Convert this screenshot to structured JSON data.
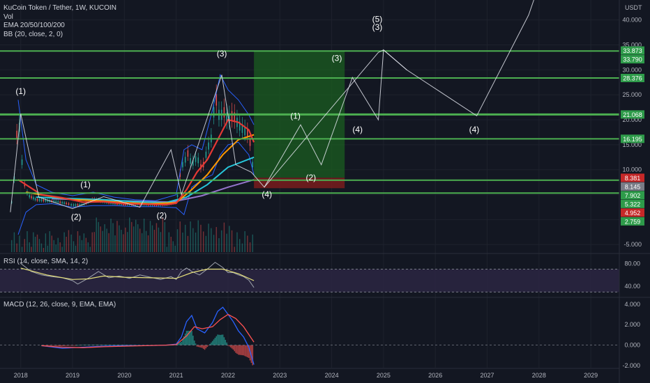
{
  "legend": {
    "symbol": "KuCoin Token / Tether, 1W, KUCOIN",
    "vol": "Vol",
    "ema": "EMA 20/50/100/200",
    "bb": "BB (20, close, 2, 0)"
  },
  "rsi_label": "RSI (14, close, SMA, 14, 2)",
  "macd_label": "MACD (12, 26, close, 9, EMA, EMA)",
  "colors": {
    "background": "#131722",
    "grid": "#1e222d",
    "level_line": "#4caf50",
    "price_badge_green": "#2e9b4a",
    "price_badge_red": "#c62828",
    "price_badge_gray": "#787b86",
    "candle_up": "#26a69a",
    "candle_down": "#ef5350",
    "ema20": "#e53935",
    "ema50": "#ff9800",
    "ema100": "#26c6da",
    "ema200": "#9575cd",
    "bb": "#2962ff",
    "projection": "#e0e3eb",
    "long_zone": "#1b5e20",
    "stop_zone": "#7f1d1d",
    "rsi_band": "#2a2540",
    "rsi_line": "#e6e07a",
    "macd_line": "#2962ff",
    "signal_line": "#ff5252"
  },
  "chart_data": [
    {
      "type": "line",
      "pane": "price",
      "y_axis_unit": "USDT",
      "y_ticks": [
        -5,
        0,
        5,
        10,
        15,
        20,
        25,
        30,
        35,
        40
      ],
      "ylim": [
        -6.5,
        44
      ],
      "x_ticks": [
        "2018",
        "2019",
        "2020",
        "2021",
        "2022",
        "2023",
        "2024",
        "2025",
        "2026",
        "2027",
        "2028",
        "2029"
      ],
      "xlim": [
        2017.6,
        2029.55
      ],
      "horizontal_levels": [
        33.79,
        28.376,
        21.068,
        16.195,
        7.902,
        5.322
      ],
      "price_badges": [
        {
          "value": "33.873",
          "kind": "green"
        },
        {
          "value": "33.790",
          "kind": "green"
        },
        {
          "value": "28.376",
          "kind": "green"
        },
        {
          "value": "21.068",
          "kind": "green"
        },
        {
          "value": "16.195",
          "kind": "green"
        },
        {
          "value": "8.381",
          "kind": "red"
        },
        {
          "value": "8.145",
          "kind": "gray"
        },
        {
          "value": "7.902",
          "kind": "green"
        },
        {
          "value": "5.322",
          "kind": "green"
        },
        {
          "value": "4.952",
          "kind": "red"
        },
        {
          "value": "2.759",
          "kind": "green"
        }
      ],
      "price_series": {
        "x": [
          2017.8,
          2017.85,
          2017.9,
          2017.95,
          2018.0,
          2018.05,
          2018.1,
          2018.15,
          2018.3,
          2018.5,
          2018.7,
          2018.9,
          2019.0,
          2019.2,
          2019.4,
          2019.6,
          2019.8,
          2020.0,
          2020.2,
          2020.4,
          2020.6,
          2020.8,
          2021.0,
          2021.05,
          2021.1,
          2021.15,
          2021.2,
          2021.3,
          2021.4,
          2021.5,
          2021.6,
          2021.7,
          2021.75,
          2021.8,
          2021.85,
          2021.9,
          2021.95,
          2022.0,
          2022.1,
          2022.2,
          2022.3,
          2022.4,
          2022.45,
          2022.5
        ],
        "close": [
          2.5,
          4.5,
          12.0,
          22.0,
          15.0,
          8.0,
          6.0,
          4.8,
          4.0,
          3.8,
          3.6,
          3.2,
          2.9,
          3.0,
          4.1,
          3.6,
          3.2,
          3.0,
          3.1,
          3.0,
          2.9,
          3.0,
          3.5,
          6.0,
          12.0,
          10.0,
          14.0,
          11.0,
          12.5,
          10.0,
          14.0,
          17.0,
          26.0,
          22.0,
          20.0,
          22.0,
          21.0,
          20.0,
          21.0,
          19.0,
          18.0,
          17.0,
          14.0,
          8.1
        ]
      },
      "ema20_series": {
        "x": [
          2017.95,
          2018.1,
          2018.4,
          2018.8,
          2019.2,
          2019.6,
          2020.0,
          2020.4,
          2020.8,
          2021.0,
          2021.2,
          2021.4,
          2021.6,
          2021.8,
          2022.0,
          2022.2,
          2022.4,
          2022.5
        ],
        "y": [
          8.0,
          7.0,
          5.0,
          4.4,
          3.5,
          3.6,
          3.2,
          3.1,
          3.0,
          3.3,
          6.0,
          9.5,
          12.0,
          16.0,
          20.0,
          19.5,
          18.0,
          15.5
        ]
      },
      "ema50_series": {
        "x": [
          2018.1,
          2018.5,
          2019.0,
          2019.5,
          2020.0,
          2020.5,
          2021.0,
          2021.3,
          2021.6,
          2021.9,
          2022.2,
          2022.5
        ],
        "y": [
          5.5,
          4.8,
          4.0,
          3.8,
          3.4,
          3.2,
          3.4,
          6.0,
          9.0,
          13.0,
          16.0,
          17.0
        ]
      },
      "ema100_series": {
        "x": [
          2018.3,
          2019.0,
          2019.6,
          2020.2,
          2020.8,
          2021.2,
          2021.6,
          2022.0,
          2022.5
        ],
        "y": [
          4.5,
          4.2,
          4.0,
          3.6,
          3.4,
          4.5,
          7.0,
          10.5,
          12.5
        ]
      },
      "ema200_series": {
        "x": [
          2018.6,
          2019.4,
          2020.2,
          2020.9,
          2021.5,
          2022.0,
          2022.5
        ],
        "y": [
          4.2,
          3.9,
          3.7,
          3.5,
          4.8,
          6.5,
          8.0
        ]
      },
      "bb_upper": {
        "x": [
          2017.95,
          2018.1,
          2018.3,
          2018.6,
          2019.0,
          2019.4,
          2019.8,
          2020.2,
          2020.6,
          2021.0,
          2021.15,
          2021.3,
          2021.5,
          2021.7,
          2021.85,
          2022.0,
          2022.2,
          2022.4,
          2022.5
        ],
        "y": [
          24,
          12,
          7,
          5.5,
          4.8,
          5.5,
          4.5,
          4.0,
          3.8,
          5.0,
          14,
          15,
          14,
          22,
          29,
          26,
          24,
          21,
          19
        ]
      },
      "bb_lower": {
        "x": [
          2017.95,
          2018.1,
          2018.3,
          2018.6,
          2019.0,
          2019.4,
          2019.8,
          2020.2,
          2020.6,
          2021.0,
          2021.15,
          2021.3,
          2021.5,
          2021.7,
          2021.85,
          2022.0,
          2022.2,
          2022.4,
          2022.5
        ],
        "y": [
          -3,
          1.5,
          3.0,
          3.2,
          2.5,
          2.8,
          2.8,
          2.6,
          2.6,
          2.4,
          1.0,
          6.5,
          8.0,
          9.0,
          13,
          15,
          15.5,
          13,
          9.0
        ]
      },
      "wave_projection": {
        "x": [
          2017.8,
          2018.0,
          2018.35,
          2019.0,
          2019.6,
          2020.3,
          2020.9,
          2021.1,
          2021.88,
          2022.15,
          2022.45,
          2022.7,
          2023.4,
          2023.8,
          2024.4,
          2024.9,
          2025.0,
          2025.45,
          2026.8,
          2027.8,
          2028.0
        ],
        "y": [
          1.5,
          21.2,
          4.5,
          2.2,
          4.6,
          2.5,
          14.0,
          5.0,
          29.0,
          11.0,
          9.5,
          6.5,
          19.0,
          11.0,
          28.5,
          20.0,
          34.0,
          30.0,
          20.8,
          41.0,
          47.0
        ]
      },
      "wave_secondary": {
        "x": [
          2022.7,
          2024.9,
          2025.0,
          2025.45
        ],
        "y": [
          6.5,
          33.5,
          34.0,
          30.0
        ]
      },
      "wave_labels": [
        {
          "text": "(1)",
          "x": 2018.0,
          "y": 25.2
        },
        {
          "text": "(2)",
          "x": 2019.07,
          "y": 0.0
        },
        {
          "text": "(1)",
          "x": 2019.25,
          "y": 6.5
        },
        {
          "text": "(2)",
          "x": 2020.72,
          "y": 0.3
        },
        {
          "text": "(3)",
          "x": 2021.88,
          "y": 32.7
        },
        {
          "text": "(1)",
          "x": 2023.3,
          "y": 20.2
        },
        {
          "text": "(2)",
          "x": 2023.6,
          "y": 7.9
        },
        {
          "text": "(4)",
          "x": 2022.75,
          "y": 4.5
        },
        {
          "text": "(3)",
          "x": 2024.1,
          "y": 31.8
        },
        {
          "text": "(4)",
          "x": 2024.5,
          "y": 17.5
        },
        {
          "text": "(5)",
          "x": 2024.88,
          "y": 39.6
        },
        {
          "text": "(3)",
          "x": 2024.88,
          "y": 38.0
        },
        {
          "text": "(4)",
          "x": 2026.75,
          "y": 17.5
        }
      ],
      "long_position": {
        "x0": 2022.5,
        "x1": 2024.25,
        "entry": 8.4,
        "target": 33.8,
        "stop": 6.3
      }
    },
    {
      "type": "line",
      "pane": "rsi",
      "y_ticks": [
        40.0,
        80.0
      ],
      "ylim": [
        22,
        95
      ],
      "band": [
        30,
        70
      ],
      "rsi": {
        "x": [
          2018.0,
          2018.2,
          2018.4,
          2018.6,
          2018.8,
          2019.0,
          2019.1,
          2019.3,
          2019.5,
          2019.7,
          2019.9,
          2020.1,
          2020.3,
          2020.5,
          2020.7,
          2020.9,
          2021.0,
          2021.1,
          2021.2,
          2021.3,
          2021.45,
          2021.6,
          2021.75,
          2021.9,
          2022.0,
          2022.1,
          2022.2,
          2022.3,
          2022.4,
          2022.5
        ],
        "y": [
          80,
          66,
          60,
          57,
          55,
          50,
          44,
          54,
          66,
          55,
          58,
          54,
          60,
          56,
          52,
          57,
          52,
          66,
          72,
          66,
          60,
          70,
          82,
          73,
          64,
          64,
          60,
          57,
          51,
          38
        ]
      },
      "rsi_ma": {
        "x": [
          2018.0,
          2018.5,
          2019.0,
          2019.3,
          2019.6,
          2020.0,
          2020.5,
          2021.0,
          2021.3,
          2021.6,
          2021.9,
          2022.2,
          2022.5
        ],
        "y": [
          72,
          60,
          52,
          53,
          58,
          56,
          55,
          54,
          64,
          70,
          70,
          62,
          50
        ]
      }
    },
    {
      "type": "line",
      "pane": "macd",
      "y_ticks": [
        4.0,
        2.0,
        0.0,
        -2.0
      ],
      "ylim": [
        -2.2,
        4.6
      ],
      "macd": {
        "x": [
          2018.4,
          2018.8,
          2019.2,
          2019.6,
          2020.0,
          2020.4,
          2020.8,
          2021.0,
          2021.1,
          2021.2,
          2021.3,
          2021.4,
          2021.55,
          2021.7,
          2021.8,
          2021.9,
          2022.0,
          2022.1,
          2022.2,
          2022.3,
          2022.4,
          2022.5
        ],
        "y": [
          -0.05,
          -0.3,
          -0.2,
          -0.1,
          -0.05,
          -0.05,
          0.0,
          0.1,
          0.8,
          2.3,
          2.9,
          1.6,
          1.2,
          2.2,
          3.3,
          3.7,
          3.0,
          2.3,
          1.4,
          0.8,
          -0.2,
          -1.9
        ]
      },
      "signal": {
        "x": [
          2018.4,
          2018.8,
          2019.2,
          2019.6,
          2020.0,
          2020.4,
          2020.8,
          2021.0,
          2021.2,
          2021.35,
          2021.5,
          2021.7,
          2021.85,
          2022.0,
          2022.15,
          2022.3,
          2022.5
        ],
        "y": [
          -0.05,
          -0.2,
          -0.25,
          -0.15,
          -0.1,
          -0.05,
          0.0,
          0.05,
          0.9,
          1.8,
          1.6,
          1.8,
          2.5,
          3.0,
          2.6,
          1.8,
          0.3
        ]
      }
    }
  ]
}
